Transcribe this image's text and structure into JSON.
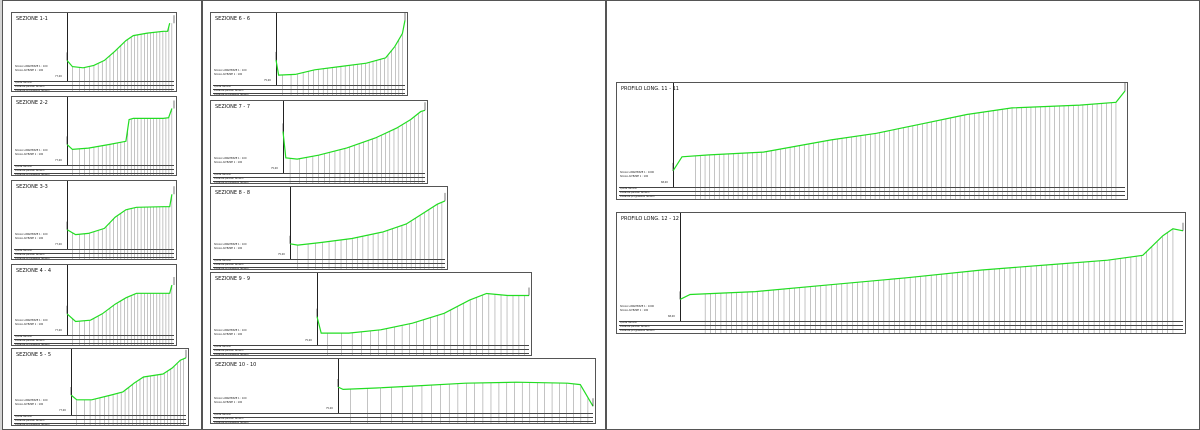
{
  "sheets": [
    {
      "id": "left"
    },
    {
      "id": "middle"
    },
    {
      "id": "right"
    }
  ],
  "sections": [
    {
      "title": "SEZIONE 1-1",
      "quota": "77,00",
      "scale_h": "SCALA LUNGHEZZE 1 : 100",
      "scale_v": "SCALA ALTEZZE 1 : 100",
      "profile": [
        [
          0,
          0.3
        ],
        [
          0.05,
          0.2
        ],
        [
          0.15,
          0.18
        ],
        [
          0.25,
          0.22
        ],
        [
          0.35,
          0.3
        ],
        [
          0.45,
          0.45
        ],
        [
          0.55,
          0.62
        ],
        [
          0.62,
          0.7
        ],
        [
          0.75,
          0.74
        ],
        [
          0.9,
          0.77
        ],
        [
          0.94,
          0.77
        ],
        [
          0.96,
          0.9
        ]
      ]
    },
    {
      "title": "SEZIONE 2-2",
      "quota": "77,00",
      "scale_h": "SCALA LUNGHEZZE 1 : 100",
      "scale_v": "SCALA ALTEZZE 1 : 100",
      "profile": [
        [
          0,
          0.3
        ],
        [
          0.05,
          0.22
        ],
        [
          0.2,
          0.24
        ],
        [
          0.4,
          0.3
        ],
        [
          0.55,
          0.35
        ],
        [
          0.58,
          0.7
        ],
        [
          0.62,
          0.72
        ],
        [
          0.9,
          0.72
        ],
        [
          0.95,
          0.73
        ],
        [
          0.98,
          0.88
        ]
      ]
    },
    {
      "title": "SEZIONE 3-3",
      "quota": "77,00",
      "scale_h": "SCALA LUNGHEZZE 1 : 100",
      "scale_v": "SCALA ALTEZZE 1 : 100",
      "profile": [
        [
          0,
          0.28
        ],
        [
          0.08,
          0.2
        ],
        [
          0.2,
          0.22
        ],
        [
          0.35,
          0.3
        ],
        [
          0.45,
          0.48
        ],
        [
          0.55,
          0.6
        ],
        [
          0.65,
          0.64
        ],
        [
          0.9,
          0.65
        ],
        [
          0.96,
          0.65
        ],
        [
          0.98,
          0.85
        ]
      ]
    },
    {
      "title": "SEZIONE 4 - 4",
      "quota": "77,00",
      "scale_h": "SCALA LUNGHEZZE 1 : 100",
      "scale_v": "SCALA ALTEZZE 1 : 100",
      "profile": [
        [
          0,
          0.3
        ],
        [
          0.08,
          0.18
        ],
        [
          0.22,
          0.2
        ],
        [
          0.33,
          0.3
        ],
        [
          0.45,
          0.45
        ],
        [
          0.55,
          0.55
        ],
        [
          0.65,
          0.62
        ],
        [
          0.93,
          0.62
        ],
        [
          0.96,
          0.62
        ],
        [
          0.98,
          0.75
        ]
      ]
    },
    {
      "title": "SEZIONE 5 - 5",
      "quota": "77,00",
      "scale_h": "SCALA LUNGHEZZE 1 : 100",
      "scale_v": "SCALA ALTEZZE 1 : 100",
      "profile": [
        [
          0,
          0.3
        ],
        [
          0.05,
          0.22
        ],
        [
          0.18,
          0.22
        ],
        [
          0.35,
          0.3
        ],
        [
          0.45,
          0.35
        ],
        [
          0.55,
          0.5
        ],
        [
          0.63,
          0.6
        ],
        [
          0.8,
          0.65
        ],
        [
          0.88,
          0.75
        ],
        [
          0.95,
          0.88
        ],
        [
          1,
          0.92
        ]
      ]
    },
    {
      "title": "SEZIONE 6 - 6",
      "quota": "75,00",
      "scale_h": "SCALA LUNGHEZZE 1 : 100",
      "scale_v": "SCALA ALTEZZE 1 : 100",
      "profile": [
        [
          0,
          0.35
        ],
        [
          0.02,
          0.12
        ],
        [
          0.15,
          0.13
        ],
        [
          0.3,
          0.2
        ],
        [
          0.5,
          0.25
        ],
        [
          0.7,
          0.3
        ],
        [
          0.85,
          0.38
        ],
        [
          0.92,
          0.55
        ],
        [
          0.98,
          0.75
        ],
        [
          1,
          0.95
        ]
      ]
    },
    {
      "title": "SEZIONE 7 - 7",
      "quota": "75,00",
      "scale_h": "SCALA LUNGHEZZE 1 : 100",
      "scale_v": "SCALA ALTEZZE 1 : 100",
      "profile": [
        [
          0,
          0.6
        ],
        [
          0.02,
          0.2
        ],
        [
          0.1,
          0.18
        ],
        [
          0.25,
          0.24
        ],
        [
          0.45,
          0.35
        ],
        [
          0.65,
          0.5
        ],
        [
          0.8,
          0.65
        ],
        [
          0.9,
          0.78
        ],
        [
          0.97,
          0.9
        ],
        [
          1,
          0.92
        ]
      ]
    },
    {
      "title": "SEZIONE 8 - 8",
      "quota": "75,00",
      "scale_h": "SCALA LUNGHEZZE 1 : 100",
      "scale_v": "SCALA ALTEZZE 1 : 100",
      "profile": [
        [
          0,
          0.2
        ],
        [
          0.05,
          0.18
        ],
        [
          0.2,
          0.22
        ],
        [
          0.4,
          0.28
        ],
        [
          0.6,
          0.38
        ],
        [
          0.75,
          0.5
        ],
        [
          0.85,
          0.65
        ],
        [
          0.95,
          0.8
        ],
        [
          1,
          0.85
        ]
      ]
    },
    {
      "title": "SEZIONE 9 - 9",
      "quota": "75,00",
      "scale_h": "SCALA LUNGHEZZE 1 : 100",
      "scale_v": "SCALA ALTEZZE 1 : 100",
      "profile": [
        [
          0,
          0.4
        ],
        [
          0.02,
          0.15
        ],
        [
          0.15,
          0.15
        ],
        [
          0.3,
          0.2
        ],
        [
          0.45,
          0.3
        ],
        [
          0.6,
          0.45
        ],
        [
          0.72,
          0.65
        ],
        [
          0.8,
          0.75
        ],
        [
          0.9,
          0.72
        ],
        [
          1,
          0.72
        ]
      ]
    },
    {
      "title": "SEZIONE 10 - 10",
      "quota": "75,00",
      "scale_h": "SCALA LUNGHEZZE 1 : 100",
      "scale_v": "SCALA ALTEZZE 1 : 100",
      "profile": [
        [
          0,
          0.5
        ],
        [
          0.02,
          0.45
        ],
        [
          0.15,
          0.48
        ],
        [
          0.3,
          0.52
        ],
        [
          0.5,
          0.58
        ],
        [
          0.7,
          0.6
        ],
        [
          0.9,
          0.58
        ],
        [
          0.95,
          0.55
        ],
        [
          1,
          0.1
        ]
      ]
    },
    {
      "title": "PROFILO LONG. 11 - 11",
      "quota": "68,00",
      "scale_h": "SCALA LUNGHEZZE 1 : 1000",
      "scale_v": "SCALA ALTEZZE 1 : 100",
      "profile": [
        [
          0,
          0.15
        ],
        [
          0.02,
          0.3
        ],
        [
          0.08,
          0.32
        ],
        [
          0.2,
          0.35
        ],
        [
          0.35,
          0.48
        ],
        [
          0.45,
          0.55
        ],
        [
          0.55,
          0.65
        ],
        [
          0.65,
          0.75
        ],
        [
          0.75,
          0.82
        ],
        [
          0.9,
          0.85
        ],
        [
          0.98,
          0.88
        ],
        [
          1,
          1
        ]
      ]
    },
    {
      "title": "PROFILO LONG. 12 - 12",
      "quota": "68,00",
      "scale_h": "SCALA LUNGHEZZE 1 : 1000",
      "scale_v": "SCALA ALTEZZE 1 : 100",
      "profile": [
        [
          0,
          0.2
        ],
        [
          0.02,
          0.25
        ],
        [
          0.15,
          0.28
        ],
        [
          0.3,
          0.35
        ],
        [
          0.45,
          0.42
        ],
        [
          0.6,
          0.5
        ],
        [
          0.75,
          0.56
        ],
        [
          0.85,
          0.6
        ],
        [
          0.92,
          0.65
        ],
        [
          0.96,
          0.85
        ],
        [
          0.98,
          0.92
        ],
        [
          1,
          0.9
        ]
      ]
    }
  ],
  "row_labels": [
    "Quote Terreno",
    "Distanze parziali Terreno",
    "Distanze progressive Terreno"
  ],
  "colors": {
    "profile": "#22dd22",
    "frame": "#555555",
    "sheet": "#ffffff",
    "background": "#d4d4d4"
  }
}
